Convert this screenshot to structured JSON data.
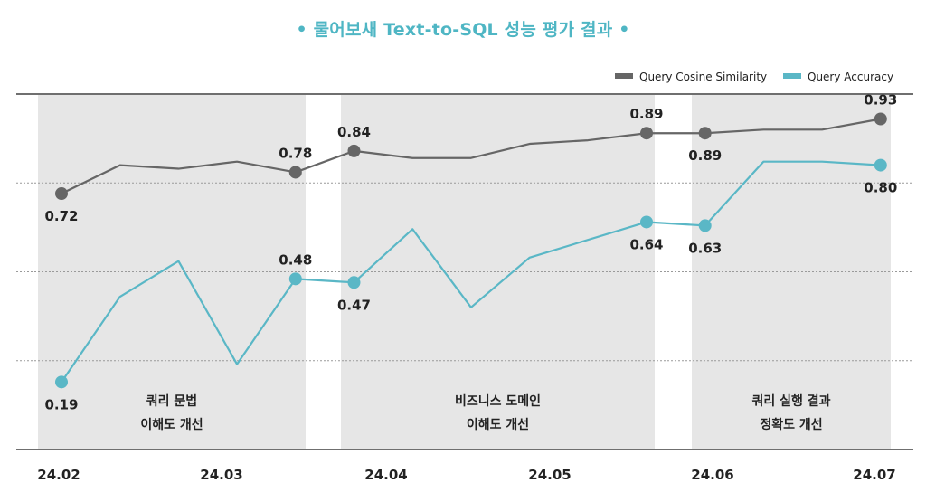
{
  "chart_data": {
    "type": "line",
    "title": "• 물어보새 Text-to-SQL 성능 평가 결과 •",
    "x_ticks": [
      "24.02",
      "24.03",
      "24.04",
      "24.05",
      "24.06",
      "24.07"
    ],
    "ylim": [
      0,
      1.0
    ],
    "grid": "horizontal dashed",
    "legend_position": "top-right",
    "series": [
      {
        "name": "Query Cosine Similarity",
        "color": "#666666",
        "values": [
          0.72,
          0.8,
          0.79,
          0.81,
          0.78,
          0.84,
          0.82,
          0.82,
          0.86,
          0.87,
          0.89,
          0.89,
          0.9,
          0.9,
          0.93
        ],
        "labels": [
          "0.72",
          null,
          null,
          null,
          "0.78",
          "0.84",
          null,
          null,
          null,
          null,
          "0.89",
          "0.89",
          null,
          null,
          "0.93"
        ]
      },
      {
        "name": "Query Accuracy",
        "color": "#5ab7c6",
        "values": [
          0.19,
          0.43,
          0.53,
          0.24,
          0.48,
          0.47,
          0.62,
          0.4,
          0.54,
          null,
          0.64,
          0.63,
          0.81,
          0.81,
          0.8
        ],
        "labels": [
          "0.19",
          null,
          null,
          null,
          "0.48",
          "0.47",
          null,
          null,
          null,
          null,
          "0.64",
          "0.63",
          null,
          null,
          "0.80"
        ]
      }
    ],
    "phases": [
      {
        "line1": "쿼리 문법",
        "line2": "이해도 개선"
      },
      {
        "line1": "비즈니스 도메인",
        "line2": "이해도 개선"
      },
      {
        "line1": "쿼리 실행 결과",
        "line2": "정확도 개선"
      }
    ]
  }
}
